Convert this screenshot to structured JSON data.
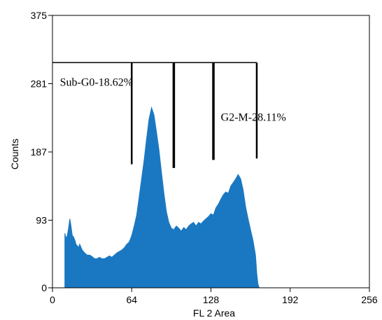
{
  "chart_data": {
    "type": "area",
    "title": "",
    "xlabel": "FL 2 Area",
    "ylabel": "Counts",
    "xlim": [
      0,
      256
    ],
    "ylim": [
      0,
      375
    ],
    "x_ticks": [
      "0",
      "64",
      "128",
      "192",
      "256"
    ],
    "y_ticks": [
      "0",
      "93",
      "187",
      "281",
      "375"
    ],
    "grid": false,
    "color": "#1a78c2",
    "series": [
      {
        "x": [
          10,
          11,
          12,
          13,
          14,
          15,
          16,
          17,
          18,
          19,
          20,
          21,
          22,
          24,
          26,
          28,
          30,
          32,
          34,
          36,
          38,
          40,
          42,
          44,
          46,
          48,
          50,
          52,
          54,
          56,
          58,
          60,
          62,
          64,
          66,
          68,
          70,
          72,
          74,
          76,
          78,
          80,
          82,
          84,
          86,
          88,
          90,
          92,
          94,
          96,
          98,
          100,
          102,
          104,
          106,
          108,
          110,
          112,
          114,
          116,
          118,
          120,
          122,
          124,
          126,
          128,
          130,
          132,
          134,
          136,
          138,
          140,
          142,
          144,
          146,
          148,
          150,
          152,
          154,
          156,
          158,
          160,
          162,
          164,
          165,
          166,
          167
        ],
        "values": [
          75,
          68,
          72,
          82,
          95,
          85,
          72,
          70,
          66,
          60,
          58,
          55,
          60,
          52,
          48,
          45,
          45,
          43,
          40,
          40,
          42,
          40,
          40,
          42,
          44,
          42,
          45,
          48,
          50,
          52,
          55,
          60,
          63,
          72,
          85,
          100,
          125,
          150,
          175,
          205,
          232,
          248,
          238,
          215,
          190,
          160,
          130,
          105,
          90,
          82,
          80,
          85,
          82,
          78,
          83,
          80,
          85,
          88,
          90,
          85,
          90,
          88,
          92,
          95,
          98,
          102,
          100,
          110,
          115,
          122,
          128,
          132,
          130,
          140,
          145,
          150,
          156,
          150,
          135,
          112,
          95,
          80,
          65,
          45,
          20,
          5,
          0
        ]
      }
    ],
    "markers": {
      "x": [
        64,
        98,
        130,
        165
      ],
      "top_y": 310,
      "bottom_y": [
        170,
        165,
        176,
        178
      ],
      "bracket_start_x": 0
    },
    "annotations": [
      {
        "text": "Sub-G0-18.62%",
        "x": 6,
        "y": 278
      },
      {
        "text": "G2-M-28.11%",
        "x": 136,
        "y": 230
      }
    ]
  }
}
